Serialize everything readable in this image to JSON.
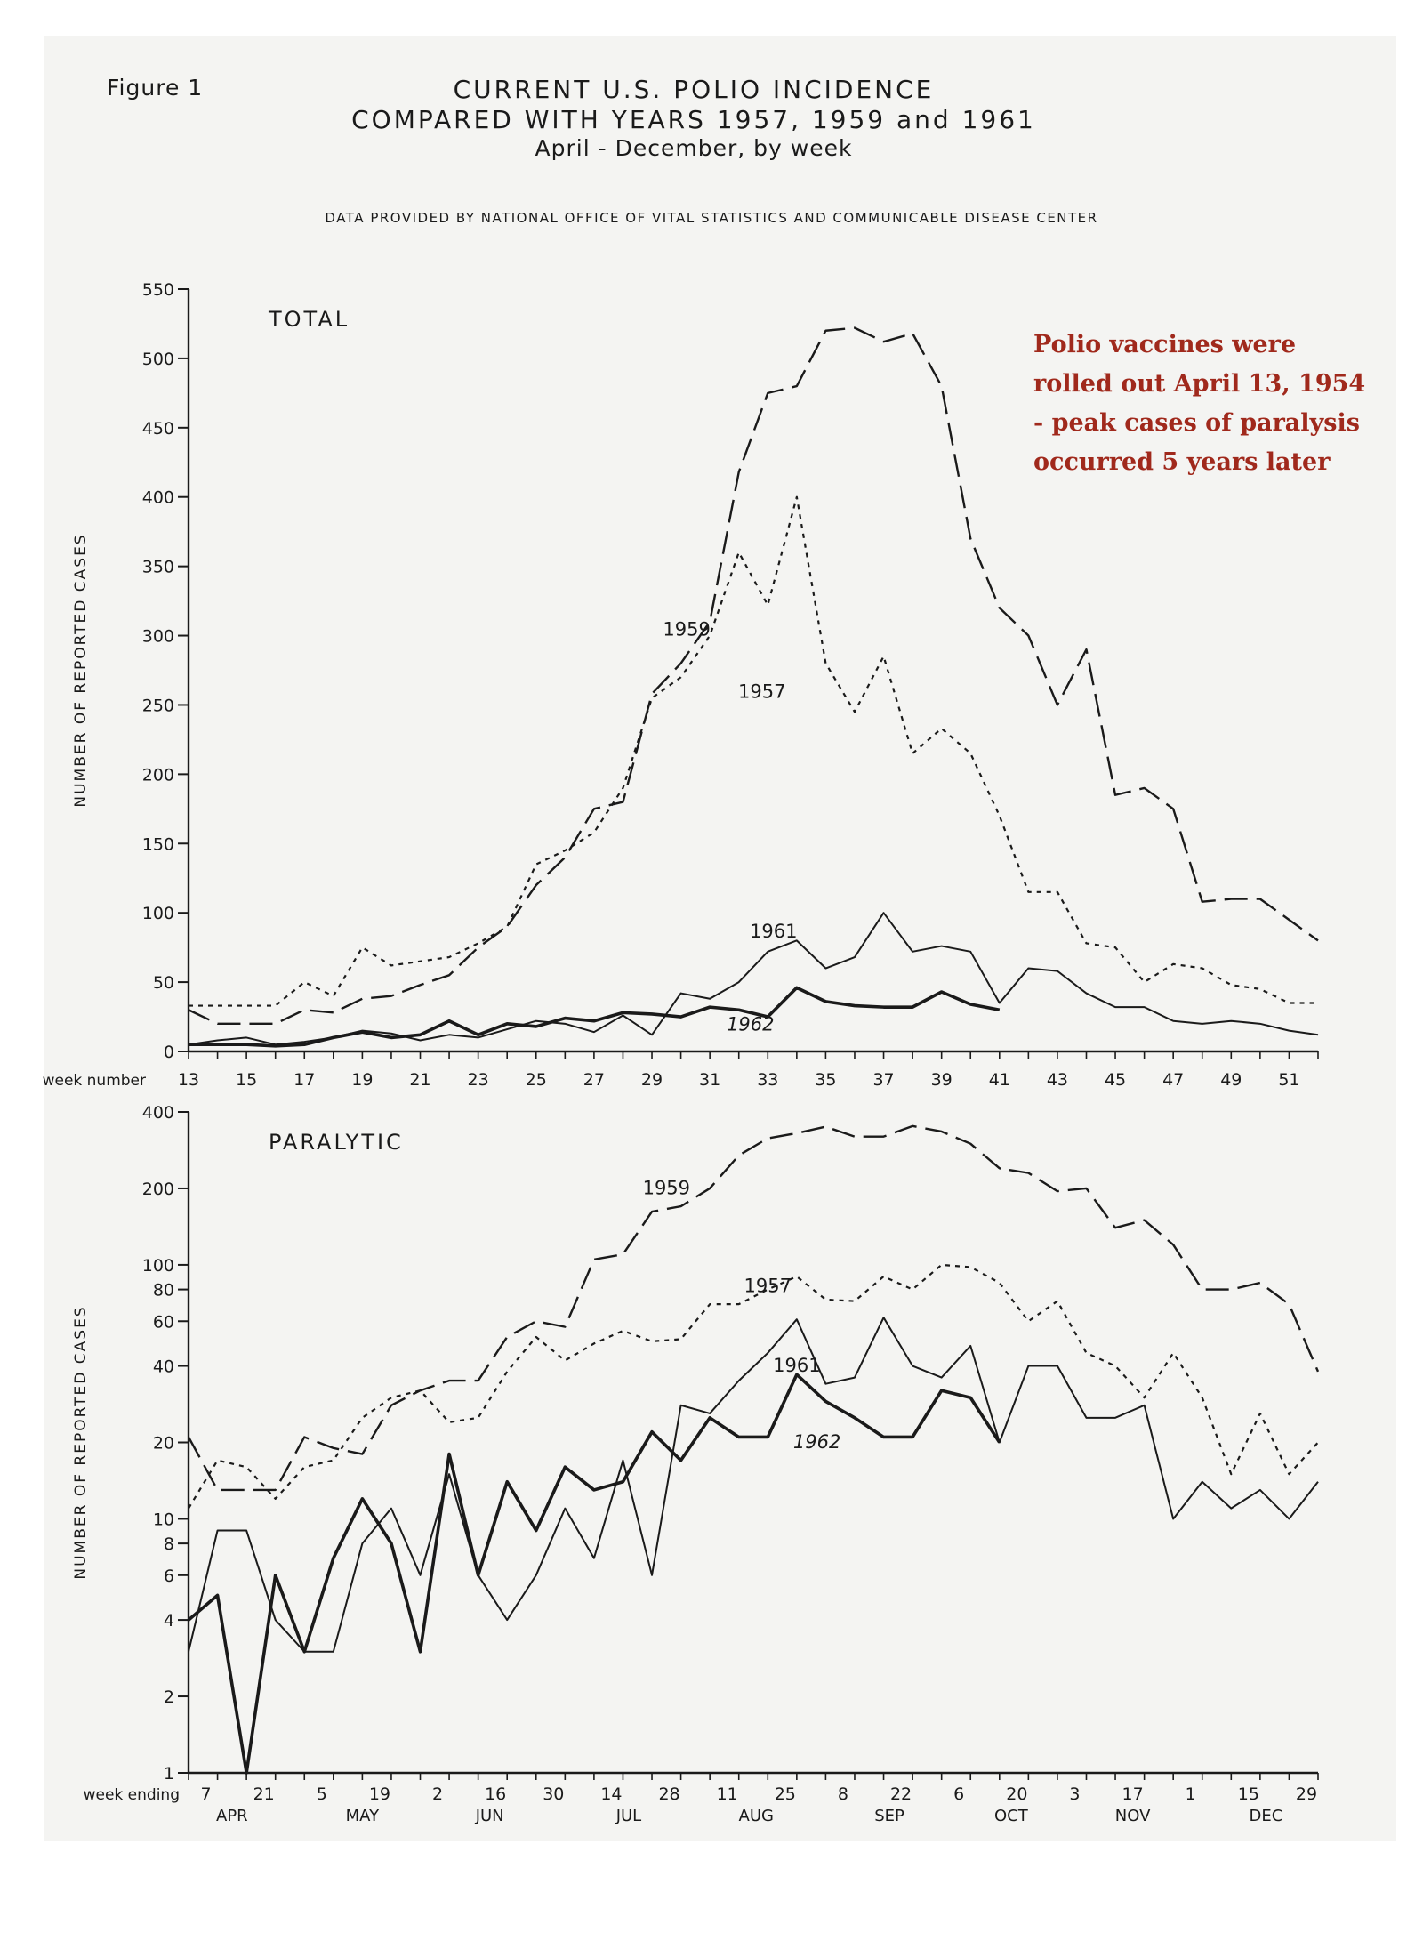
{
  "figure_label": "Figure 1",
  "title_line1": "CURRENT U.S. POLIO INCIDENCE",
  "title_line2": "COMPARED WITH YEARS 1957, 1959 and 1961",
  "title_line3": "April - December, by week",
  "source": "Data Provided by National Office of Vital Statistics and Communicable Disease Center",
  "annotation": "Polio vaccines were rolled out April 13, 1954 - peak cases of paralysis occurred 5 years later",
  "colors": {
    "ink": "#1a1a1a",
    "note": "#a0291c",
    "paper": "#f4f4f2"
  },
  "chart_data": [
    {
      "type": "line",
      "panel_label": "TOTAL",
      "ylabel": "NUMBER OF REPORTED CASES",
      "xlabel": "week number",
      "ylim": [
        0,
        550
      ],
      "yticks": [
        0,
        50,
        100,
        150,
        200,
        250,
        300,
        350,
        400,
        450,
        500,
        550
      ],
      "xlim": [
        13,
        52
      ],
      "xticks": [
        13,
        15,
        17,
        19,
        21,
        23,
        25,
        27,
        29,
        31,
        33,
        35,
        37,
        39,
        41,
        43,
        45,
        47,
        49,
        51
      ],
      "series": [
        {
          "name": "1959",
          "dash": "long",
          "x": [
            13,
            14,
            15,
            16,
            17,
            18,
            19,
            20,
            21,
            22,
            23,
            24,
            25,
            26,
            27,
            28,
            29,
            30,
            31,
            32,
            33,
            34,
            35,
            36,
            37,
            38,
            39,
            40,
            41,
            42,
            43,
            44,
            45,
            46,
            47,
            48,
            49,
            50,
            51,
            52
          ],
          "y": [
            30,
            20,
            20,
            20,
            30,
            28,
            38,
            40,
            48,
            55,
            75,
            90,
            120,
            140,
            175,
            180,
            258,
            280,
            310,
            418,
            475,
            480,
            520,
            522,
            512,
            518,
            480,
            370,
            320,
            300,
            250,
            290,
            185,
            190,
            175,
            108,
            110,
            110,
            95,
            80
          ]
        },
        {
          "name": "1957",
          "dash": "short",
          "x": [
            13,
            14,
            15,
            16,
            17,
            18,
            19,
            20,
            21,
            22,
            23,
            24,
            25,
            26,
            27,
            28,
            29,
            30,
            31,
            32,
            33,
            34,
            35,
            36,
            37,
            38,
            39,
            40,
            41,
            42,
            43,
            44,
            45,
            46,
            47,
            48,
            49,
            50,
            51,
            52
          ],
          "y": [
            33,
            33,
            33,
            33,
            50,
            40,
            75,
            62,
            65,
            68,
            78,
            90,
            135,
            145,
            158,
            190,
            255,
            270,
            300,
            360,
            322,
            400,
            280,
            245,
            285,
            215,
            233,
            215,
            170,
            115,
            115,
            78,
            75,
            50,
            63,
            60,
            48,
            45,
            35,
            35
          ]
        },
        {
          "name": "1961",
          "dash": "solid",
          "x": [
            13,
            14,
            15,
            16,
            17,
            18,
            19,
            20,
            21,
            22,
            23,
            24,
            25,
            26,
            27,
            28,
            29,
            30,
            31,
            32,
            33,
            34,
            35,
            36,
            37,
            38,
            39,
            40,
            41,
            42,
            43,
            44,
            45,
            46,
            47,
            48,
            49,
            50,
            51,
            52
          ],
          "y": [
            5,
            8,
            10,
            5,
            7,
            10,
            15,
            13,
            8,
            12,
            10,
            16,
            22,
            20,
            14,
            26,
            12,
            42,
            38,
            50,
            72,
            80,
            60,
            68,
            100,
            72,
            76,
            72,
            35,
            60,
            58,
            42,
            32,
            32,
            22,
            20,
            22,
            20,
            15,
            12
          ]
        },
        {
          "name": "1962",
          "dash": "solid-bold",
          "x": [
            13,
            14,
            15,
            16,
            17,
            18,
            19,
            20,
            21,
            22,
            23,
            24,
            25,
            26,
            27,
            28,
            29,
            30,
            31,
            32,
            33,
            34,
            35,
            36,
            37,
            38,
            39,
            40,
            41
          ],
          "y": [
            5,
            5,
            5,
            4,
            5,
            10,
            14,
            10,
            12,
            22,
            12,
            20,
            18,
            24,
            22,
            28,
            27,
            25,
            32,
            30,
            25,
            46,
            36,
            33,
            32,
            32,
            43,
            34,
            30
          ]
        }
      ]
    },
    {
      "type": "line",
      "panel_label": "PARALYTIC",
      "ylabel": "NUMBER OF REPORTED CASES",
      "xlabel": "week ending",
      "yscale": "log",
      "ylim": [
        1,
        400
      ],
      "yticks": [
        1,
        2,
        4,
        6,
        8,
        10,
        20,
        40,
        60,
        80,
        100,
        200,
        400
      ],
      "xlim": [
        13,
        52
      ],
      "week_ending_ticks": [
        "7",
        "21",
        "5",
        "19",
        "2",
        "16",
        "30",
        "14",
        "28",
        "11",
        "25",
        "8",
        "22",
        "6",
        "20",
        "3",
        "17",
        "1",
        "15",
        "29"
      ],
      "month_labels": [
        "APR",
        "MAY",
        "JUN",
        "JUL",
        "AUG",
        "SEP",
        "OCT",
        "NOV",
        "DEC"
      ],
      "series": [
        {
          "name": "1959",
          "dash": "long",
          "x": [
            13,
            14,
            15,
            16,
            17,
            18,
            19,
            20,
            21,
            22,
            23,
            24,
            25,
            26,
            27,
            28,
            29,
            30,
            31,
            32,
            33,
            34,
            35,
            36,
            37,
            38,
            39,
            40,
            41,
            42,
            43,
            44,
            45,
            46,
            47,
            48,
            49,
            50,
            51,
            52
          ],
          "y": [
            21,
            13,
            13,
            13,
            21,
            19,
            18,
            28,
            32,
            35,
            35,
            52,
            60,
            57,
            105,
            110,
            162,
            170,
            200,
            270,
            315,
            330,
            350,
            320,
            320,
            352,
            335,
            300,
            240,
            230,
            195,
            200,
            140,
            150,
            120,
            80,
            80,
            85,
            70,
            38
          ]
        },
        {
          "name": "1957",
          "dash": "short",
          "x": [
            13,
            14,
            15,
            16,
            17,
            18,
            19,
            20,
            21,
            22,
            23,
            24,
            25,
            26,
            27,
            28,
            29,
            30,
            31,
            32,
            33,
            34,
            35,
            36,
            37,
            38,
            39,
            40,
            41,
            42,
            43,
            44,
            45,
            46,
            47,
            48,
            49,
            50,
            51,
            52
          ],
          "y": [
            11,
            17,
            16,
            12,
            16,
            17,
            25,
            30,
            32,
            24,
            25,
            38,
            52,
            42,
            49,
            55,
            50,
            51,
            70,
            70,
            80,
            90,
            73,
            72,
            90,
            80,
            100,
            98,
            85,
            60,
            72,
            45,
            40,
            30,
            45,
            30,
            15,
            26,
            15,
            20
          ]
        },
        {
          "name": "1961",
          "dash": "solid",
          "x": [
            13,
            14,
            15,
            16,
            17,
            18,
            19,
            20,
            21,
            22,
            23,
            24,
            25,
            26,
            27,
            28,
            29,
            30,
            31,
            32,
            33,
            34,
            35,
            36,
            37,
            38,
            39,
            40,
            41,
            42,
            43,
            44,
            45,
            46,
            47,
            48,
            49,
            50,
            51,
            52
          ],
          "y": [
            3,
            9,
            9,
            4,
            3,
            3,
            8,
            11,
            6,
            15,
            6,
            4,
            6,
            11,
            7,
            17,
            6,
            28,
            26,
            35,
            45,
            61,
            34,
            36,
            62,
            40,
            36,
            48,
            20,
            40,
            40,
            25,
            25,
            28,
            10,
            14,
            11,
            13,
            10,
            14
          ]
        },
        {
          "name": "1962",
          "dash": "solid-bold",
          "x": [
            13,
            14,
            15,
            16,
            17,
            18,
            19,
            20,
            21,
            22,
            23,
            24,
            25,
            26,
            27,
            28,
            29,
            30,
            31,
            32,
            33,
            34,
            35,
            36,
            37,
            38,
            39,
            40,
            41
          ],
          "y": [
            4,
            5,
            1,
            6,
            3,
            7,
            12,
            8,
            3,
            18,
            6,
            14,
            9,
            16,
            13,
            14,
            22,
            17,
            25,
            21,
            21,
            37,
            29,
            25,
            21,
            21,
            32,
            30,
            20
          ]
        }
      ]
    }
  ]
}
